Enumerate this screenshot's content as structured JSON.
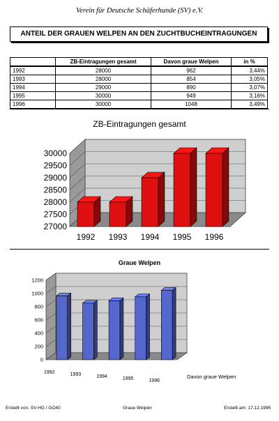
{
  "header": {
    "org": "Verein für Deutsche Schäferhunde (SV) e.V."
  },
  "title": "ANTEIL DER GRAUEN WELPEN AN DEN ZUCHTBUCHEINTRAGUNGEN",
  "table": {
    "headers": [
      "",
      "ZB-Eintragungen gesamt",
      "Davon graue Welpen",
      "in %"
    ],
    "rows": [
      [
        "1992",
        "28000",
        "962",
        "3,44%"
      ],
      [
        "1993",
        "28000",
        "854",
        "3,05%"
      ],
      [
        "1994",
        "29000",
        "890",
        "3,07%"
      ],
      [
        "1995",
        "30000",
        "949",
        "3,16%"
      ],
      [
        "1996",
        "30000",
        "1048",
        "3,49%"
      ]
    ]
  },
  "chart_data": [
    {
      "type": "bar",
      "title": "ZB-Eintragungen gesamt",
      "categories": [
        "1992",
        "1993",
        "1994",
        "1995",
        "1996"
      ],
      "values": [
        28000,
        28000,
        29000,
        30000,
        30000
      ],
      "ylim": [
        27000,
        30000
      ],
      "yticks": [
        "30000",
        "29500",
        "29000",
        "28500",
        "28000",
        "27500",
        "27000"
      ],
      "grid": true,
      "style": "3d",
      "color": "#e01010"
    },
    {
      "type": "bar",
      "title": "Graue Welpen",
      "categories": [
        "1992",
        "1993",
        "1994",
        "1995",
        "1996"
      ],
      "series": [
        {
          "name": "Davon graue Welpen",
          "values": [
            962,
            854,
            890,
            949,
            1048
          ]
        }
      ],
      "ylim": [
        0,
        1200
      ],
      "yticks": [
        "1200",
        "1000",
        "800",
        "600",
        "400",
        "200",
        "0"
      ],
      "grid": true,
      "legend": "right",
      "style": "3d",
      "color": "#5566cc"
    }
  ],
  "footer": {
    "left": "Erstellt von: SV-HG / GO40",
    "center": "Graue Welpen",
    "right": "Erstellt am: 17.12.1996"
  }
}
